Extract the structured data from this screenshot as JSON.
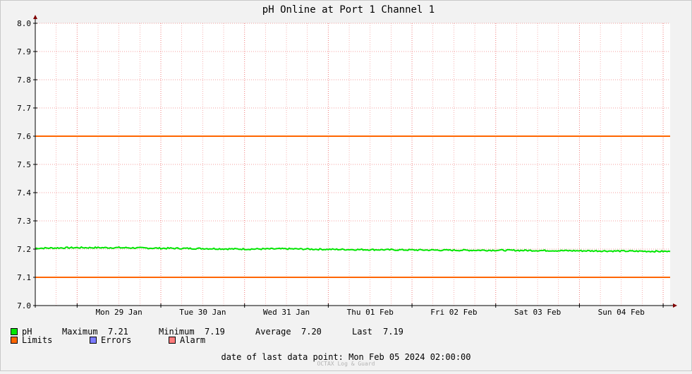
{
  "chart_data": {
    "type": "line",
    "title": "pH Online at Port 1 Channel 1",
    "ylim": [
      7.0,
      8.0
    ],
    "yticks": [
      "7.0",
      "7.1",
      "7.2",
      "7.3",
      "7.4",
      "7.5",
      "7.6",
      "7.7",
      "7.8",
      "7.9",
      "8.0"
    ],
    "xlim": [
      "2024-01-28 12:00",
      "2024-02-05 02:00"
    ],
    "day_boundaries": [
      "2024-01-29 00:00",
      "2024-01-30 00:00",
      "2024-01-31 00:00",
      "2024-02-01 00:00",
      "2024-02-02 00:00",
      "2024-02-03 00:00",
      "2024-02-04 00:00",
      "2024-02-05 00:00"
    ],
    "x_labels": [
      {
        "label": "Mon 29 Jan",
        "at": "2024-01-29 12:00"
      },
      {
        "label": "Tue 30 Jan",
        "at": "2024-01-30 12:00"
      },
      {
        "label": "Wed 31 Jan",
        "at": "2024-01-31 12:00"
      },
      {
        "label": "Thu 01 Feb",
        "at": "2024-02-01 12:00"
      },
      {
        "label": "Fri 02 Feb",
        "at": "2024-02-02 12:00"
      },
      {
        "label": "Sat 03 Feb",
        "at": "2024-02-03 12:00"
      },
      {
        "label": "Sun 04 Feb",
        "at": "2024-02-04 12:00"
      }
    ],
    "grid": true,
    "series": [
      {
        "name": "pH",
        "color": "#00e600",
        "x": [
          "2024-01-28 12:00",
          "2024-01-29 00:00",
          "2024-01-29 12:00",
          "2024-01-30 00:00",
          "2024-01-30 12:00",
          "2024-01-31 00:00",
          "2024-01-31 12:00",
          "2024-02-01 00:00",
          "2024-02-01 12:00",
          "2024-02-02 00:00",
          "2024-02-02 12:00",
          "2024-02-03 00:00",
          "2024-02-03 12:00",
          "2024-02-04 00:00",
          "2024-02-04 12:00",
          "2024-02-05 00:00",
          "2024-02-05 02:00"
        ],
        "values": [
          7.203,
          7.205,
          7.205,
          7.203,
          7.202,
          7.2,
          7.201,
          7.199,
          7.198,
          7.197,
          7.196,
          7.196,
          7.195,
          7.194,
          7.193,
          7.192,
          7.191
        ]
      },
      {
        "name": "Limits",
        "color": "#ff6600",
        "values": [
          7.6,
          7.1
        ]
      }
    ],
    "legend": {
      "ph_label": "pH",
      "max_label": "Maximum",
      "max_value": "7.21",
      "min_label": "Minimum",
      "min_value": "7.19",
      "avg_label": "Average",
      "avg_value": "7.20",
      "last_label": "Last",
      "last_value": "7.19",
      "limits_label": "Limits",
      "errors_label": "Errors",
      "alarm_label": "Alarm"
    },
    "colors": {
      "ph": "#00e600",
      "limits": "#ff6600",
      "errors": "#7b7bff",
      "alarm": "#ff7b7b",
      "grid": "#f08080",
      "axis": "#000000",
      "arrow": "#800000"
    }
  },
  "footer": {
    "last_data_point": "date of last data point:  Mon Feb 05 2024 02:00:00",
    "watermark": "OCTAX Log & Guard"
  }
}
